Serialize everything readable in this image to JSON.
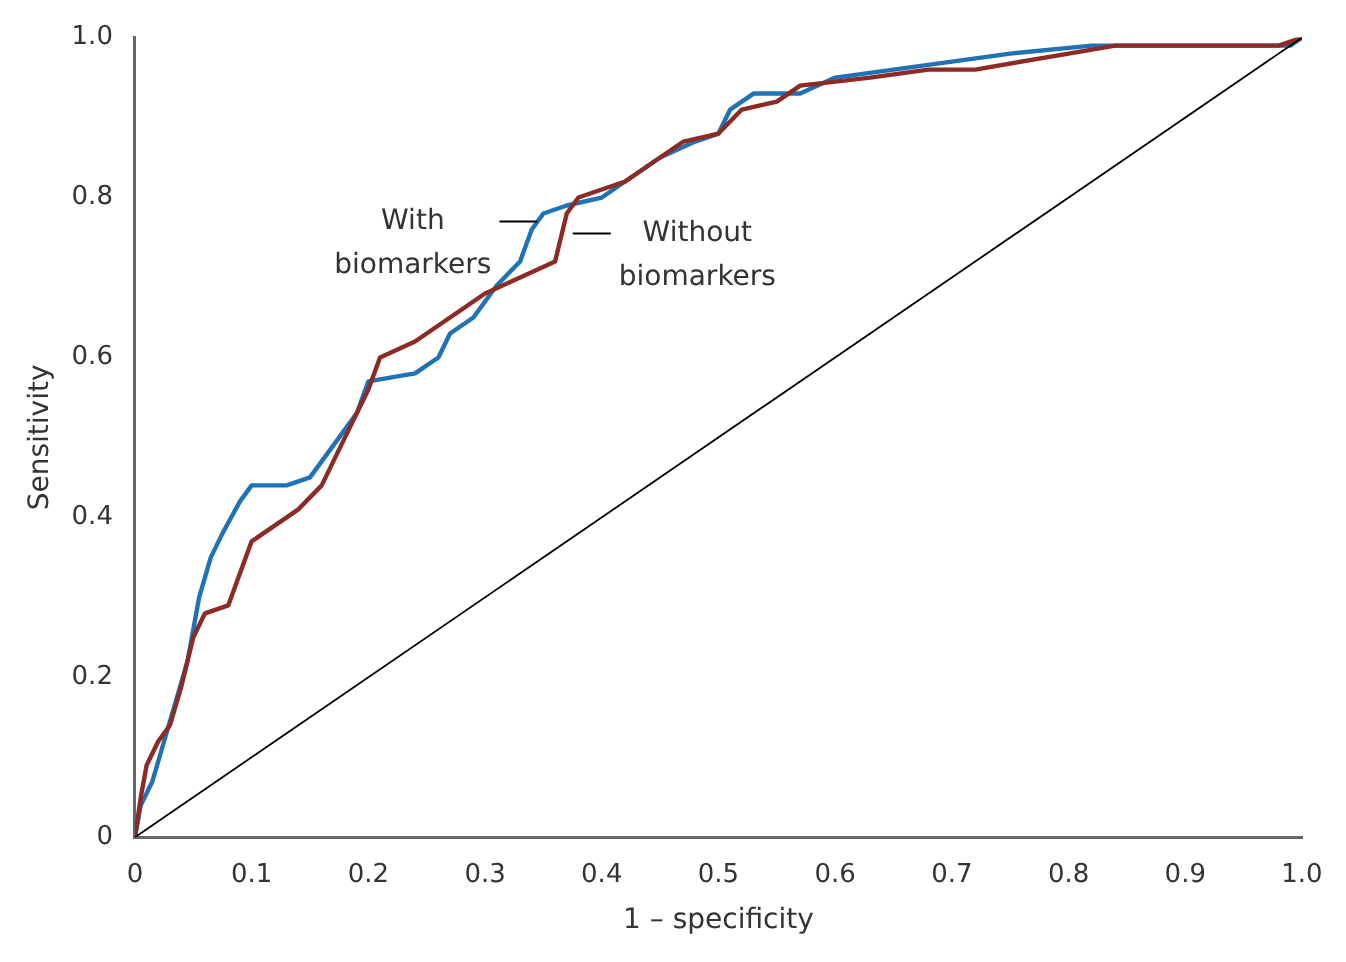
{
  "chart_data": {
    "type": "line",
    "xlabel": "1 – specificity",
    "ylabel": "Sensitivity",
    "xlim": [
      0,
      1
    ],
    "ylim": [
      0,
      1
    ],
    "xticks": [
      0,
      0.1,
      0.2,
      0.3,
      0.4,
      0.5,
      0.6,
      0.7,
      0.8,
      0.9,
      {
        "value": 1,
        "label": "1.0"
      }
    ],
    "yticks": [
      0,
      0.2,
      0.4,
      0.6,
      0.8,
      {
        "value": 1,
        "label": "1.0"
      }
    ],
    "grid": false,
    "legend": false,
    "marker": "none",
    "line_style": "solid",
    "series": [
      {
        "name": "With biomarkers",
        "color": "#1f72b5",
        "x": [
          0,
          0.005,
          0.015,
          0.025,
          0.035,
          0.045,
          0.055,
          0.065,
          0.075,
          0.09,
          0.1,
          0.13,
          0.15,
          0.17,
          0.19,
          0.2,
          0.24,
          0.26,
          0.27,
          0.29,
          0.31,
          0.33,
          0.34,
          0.35,
          0.37,
          0.4,
          0.43,
          0.45,
          0.48,
          0.5,
          0.51,
          0.53,
          0.57,
          0.6,
          0.65,
          0.7,
          0.75,
          0.82,
          0.99,
          1
        ],
        "values": [
          0,
          0.04,
          0.07,
          0.12,
          0.17,
          0.22,
          0.3,
          0.35,
          0.38,
          0.42,
          0.44,
          0.44,
          0.45,
          0.49,
          0.53,
          0.57,
          0.58,
          0.6,
          0.63,
          0.65,
          0.69,
          0.72,
          0.76,
          0.78,
          0.79,
          0.8,
          0.83,
          0.85,
          0.87,
          0.88,
          0.91,
          0.93,
          0.93,
          0.95,
          0.96,
          0.97,
          0.98,
          0.99,
          0.99,
          1
        ]
      },
      {
        "name": "Without biomarkers",
        "color": "#8e2a24",
        "x": [
          0,
          0.005,
          0.01,
          0.02,
          0.03,
          0.04,
          0.05,
          0.06,
          0.08,
          0.09,
          0.1,
          0.12,
          0.14,
          0.16,
          0.18,
          0.2,
          0.21,
          0.24,
          0.26,
          0.28,
          0.3,
          0.33,
          0.36,
          0.37,
          0.38,
          0.42,
          0.45,
          0.47,
          0.5,
          0.52,
          0.55,
          0.57,
          0.63,
          0.68,
          0.72,
          0.8,
          0.84,
          0.98,
          1
        ],
        "values": [
          0,
          0.05,
          0.09,
          0.12,
          0.14,
          0.19,
          0.25,
          0.28,
          0.29,
          0.33,
          0.37,
          0.39,
          0.41,
          0.44,
          0.5,
          0.56,
          0.6,
          0.62,
          0.64,
          0.66,
          0.68,
          0.7,
          0.72,
          0.78,
          0.8,
          0.82,
          0.85,
          0.87,
          0.88,
          0.91,
          0.92,
          0.94,
          0.95,
          0.96,
          0.96,
          0.98,
          0.99,
          0.99,
          1
        ]
      },
      {
        "color": "#000000",
        "x": [
          0,
          1
        ],
        "values": [
          0,
          1
        ]
      }
    ]
  }
}
